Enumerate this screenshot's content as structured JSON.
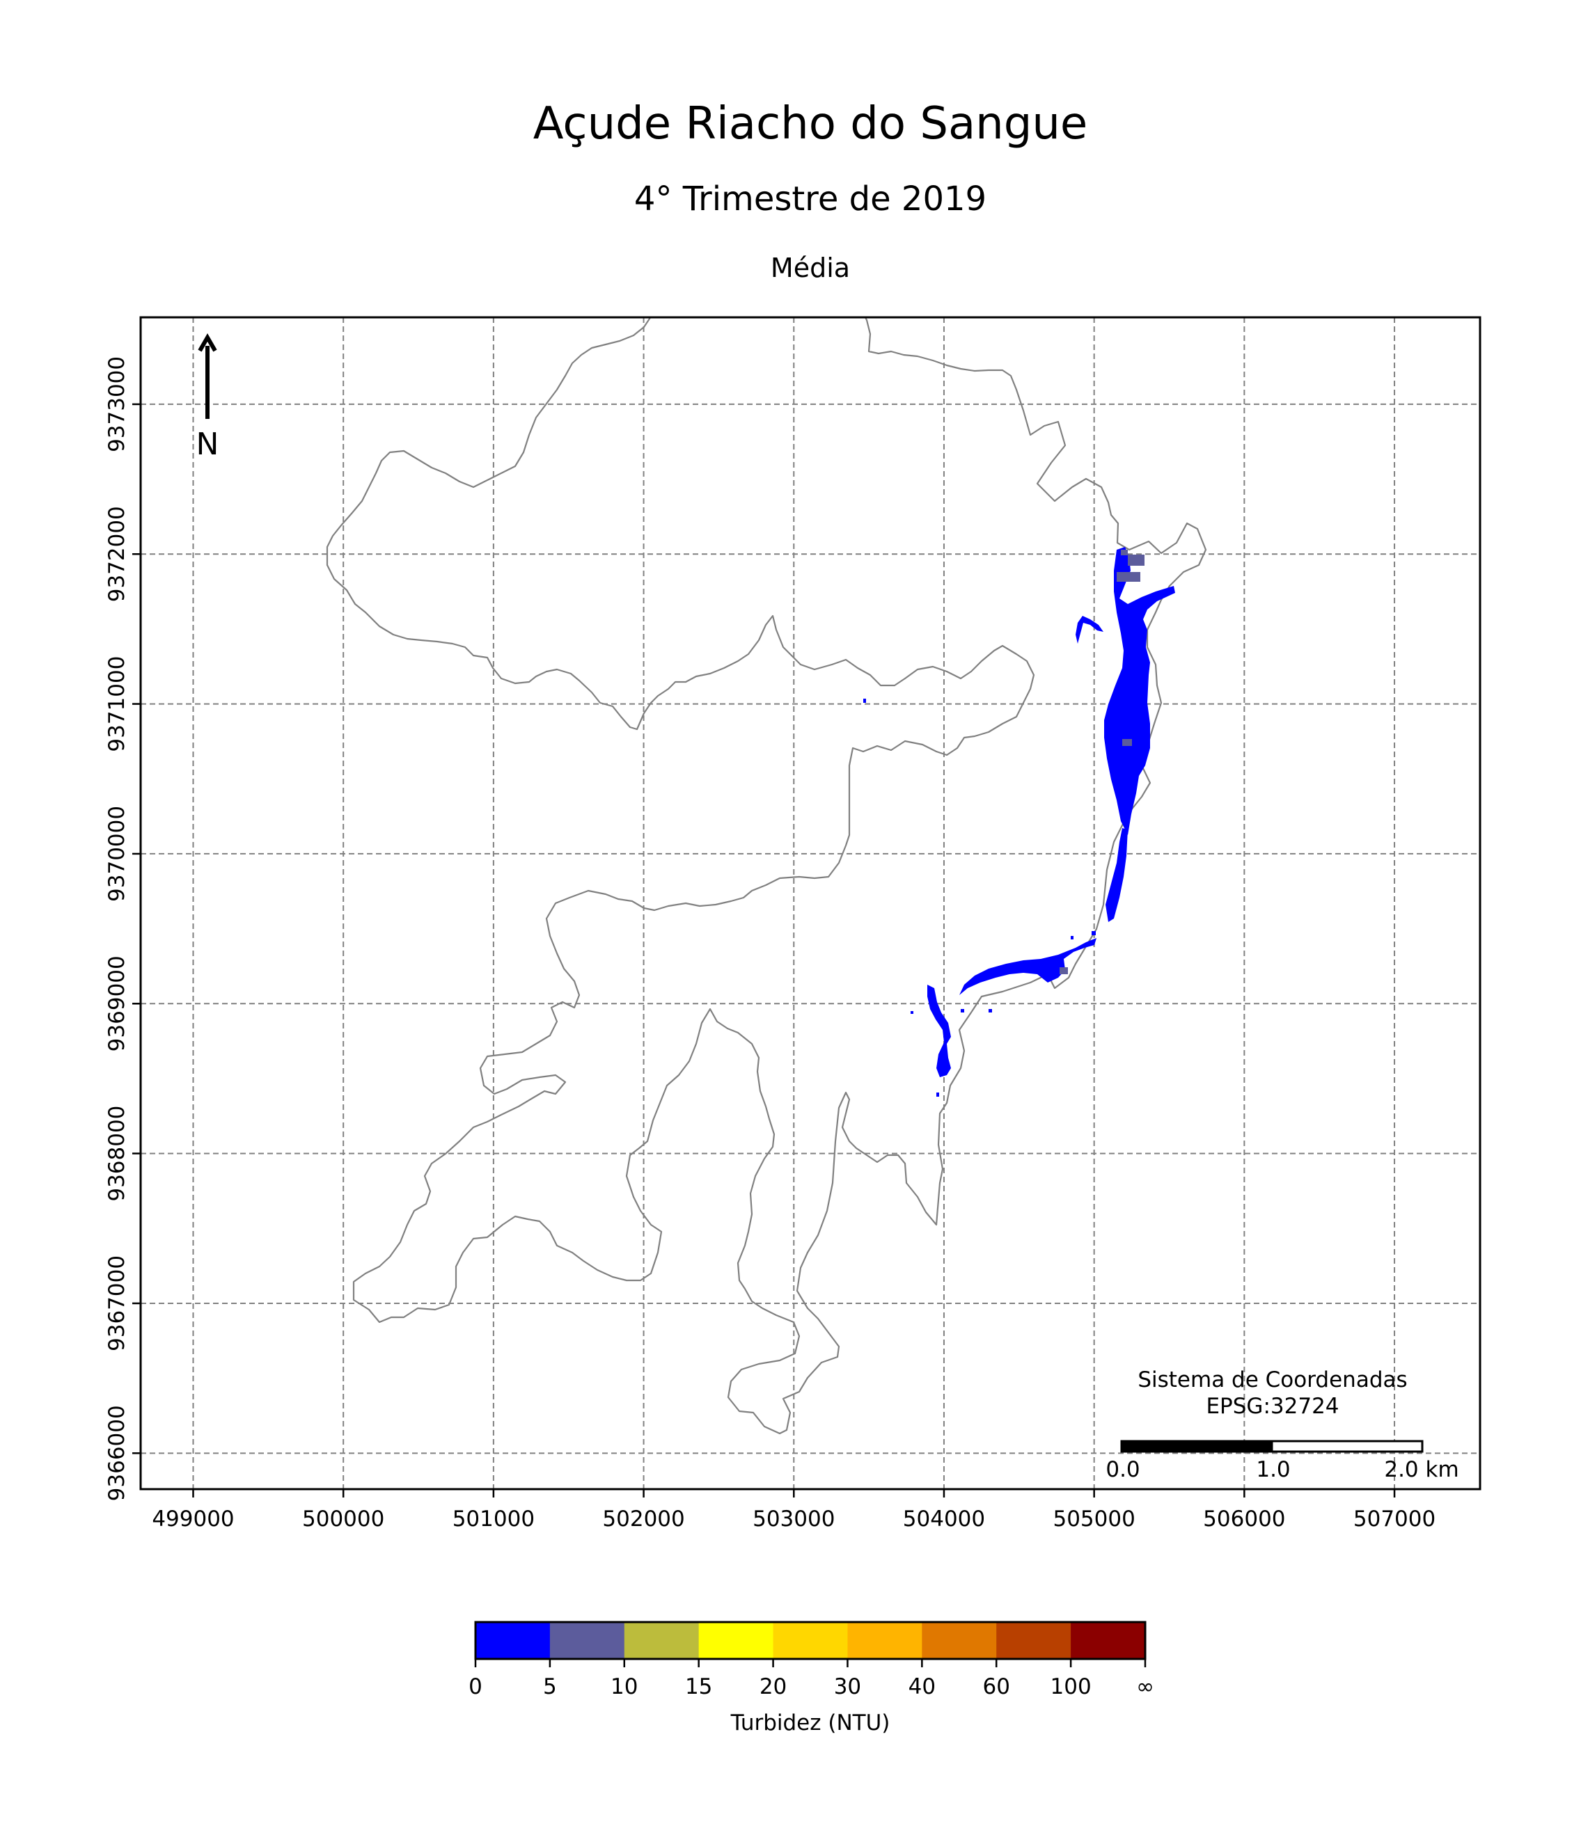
{
  "title": "Açude Riacho do Sangue",
  "subtitle": "4° Trimestre de 2019",
  "panel_title": "Média",
  "north_label": "N",
  "crs_label_line1": "Sistema de Coordenadas",
  "crs_label_line2": "EPSG:32724",
  "scalebar_labels": [
    "0.0",
    "1.0",
    "2.0 km"
  ],
  "colorbar": {
    "label": "Turbidez (NTU)",
    "tick_labels": [
      "0",
      "5",
      "10",
      "15",
      "20",
      "30",
      "40",
      "60",
      "100",
      "∞"
    ],
    "colors": [
      "#0000ff",
      "#5c5c9c",
      "#bcbc3c",
      "#ffff00",
      "#ffd700",
      "#ffb400",
      "#e07800",
      "#b84000",
      "#8b0000"
    ]
  },
  "chart_data": {
    "type": "map",
    "x_ticks": [
      499000,
      500000,
      501000,
      502000,
      503000,
      504000,
      505000,
      506000,
      507000
    ],
    "y_ticks": [
      9366000,
      9367000,
      9368000,
      9369000,
      9370000,
      9371000,
      9372000,
      9373000
    ],
    "xlim": [
      498650,
      507570
    ],
    "ylim": [
      9365760,
      9373580
    ],
    "grid": true,
    "reservoir_outline_color": "#808080",
    "water_pixel_color": "#0000ff",
    "secondary_pixel_color": "#5c5c9c"
  }
}
